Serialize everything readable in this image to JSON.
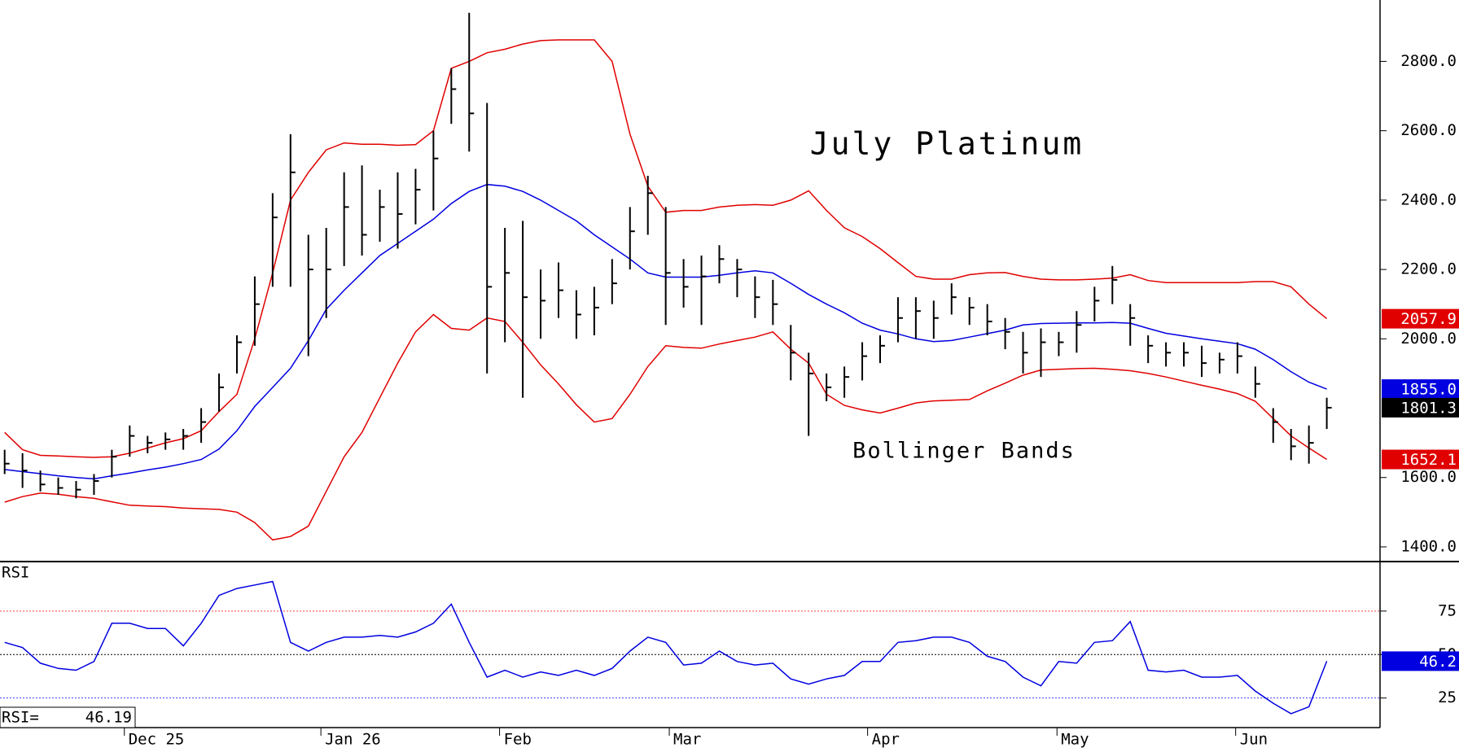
{
  "chart_data": [
    {
      "type": "ohlc",
      "title": "July Platinum",
      "annotation": "Bollinger Bands",
      "annotation_color": "#e00000",
      "xlim": [
        -0.26,
        76.98
      ],
      "ylim": [
        1360,
        2977
      ],
      "yticks": [
        {
          "value": 1400,
          "label": "1400.0"
        },
        {
          "value": 1600,
          "label": "1600.0"
        },
        {
          "value": 2000,
          "label": "2000.0"
        },
        {
          "value": 2200,
          "label": "2200.0"
        },
        {
          "value": 2400,
          "label": "2400.0"
        },
        {
          "value": 2600,
          "label": "2600.0"
        },
        {
          "value": 2800,
          "label": "2800.0"
        }
      ],
      "price": {
        "color": "#000000",
        "close_tag": "1801.3",
        "high": [
          1680,
          1670,
          1620,
          1600,
          1590,
          1610,
          1680,
          1750,
          1720,
          1730,
          1740,
          1800,
          1900,
          2010,
          2180,
          2420,
          2590,
          2300,
          2320,
          2480,
          2500,
          2430,
          2480,
          2490,
          2600,
          2780,
          2940,
          2680,
          2320,
          2340,
          2200,
          2220,
          2140,
          2150,
          2230,
          2380,
          2470,
          2380,
          2230,
          2240,
          2270,
          2230,
          2180,
          2170,
          2040,
          1960,
          1900,
          1920,
          1990,
          2010,
          2120,
          2120,
          2110,
          2160,
          2120,
          2100,
          2060,
          2020,
          2030,
          2020,
          2080,
          2150,
          2210,
          2100,
          2010,
          1990,
          1990,
          1980,
          1960,
          1990,
          1920,
          1800,
          1740,
          1750,
          1830
        ],
        "low": [
          1610,
          1570,
          1560,
          1550,
          1540,
          1550,
          1600,
          1660,
          1670,
          1680,
          1680,
          1700,
          1790,
          1900,
          1980,
          2150,
          2150,
          1950,
          2060,
          2210,
          2240,
          2280,
          2260,
          2330,
          2370,
          2620,
          2540,
          1900,
          1990,
          1830,
          2000,
          2060,
          2000,
          2010,
          2100,
          2200,
          2300,
          2040,
          2090,
          2040,
          2160,
          2120,
          2060,
          2040,
          1880,
          1720,
          1820,
          1830,
          1880,
          1930,
          1990,
          2000,
          2000,
          2070,
          2040,
          2010,
          1970,
          1900,
          1890,
          1950,
          1960,
          2050,
          2100,
          1980,
          1930,
          1920,
          1920,
          1890,
          1900,
          1900,
          1830,
          1700,
          1650,
          1640,
          1740
        ],
        "close": [
          1640,
          1620,
          1580,
          1570,
          1565,
          1590,
          1660,
          1720,
          1700,
          1710,
          1720,
          1760,
          1860,
          1990,
          2100,
          2350,
          2480,
          2200,
          2200,
          2380,
          2300,
          2380,
          2360,
          2430,
          2520,
          2720,
          2650,
          2150,
          2190,
          2120,
          2110,
          2140,
          2070,
          2090,
          2160,
          2310,
          2420,
          2190,
          2150,
          2180,
          2230,
          2200,
          2120,
          2100,
          1960,
          1900,
          1860,
          1890,
          1950,
          1980,
          2060,
          2080,
          2060,
          2120,
          2090,
          2050,
          2020,
          1960,
          1990,
          1990,
          2040,
          2110,
          2170,
          2060,
          1980,
          1960,
          1960,
          1930,
          1940,
          1950,
          1870,
          1760,
          1690,
          1700,
          1801.3
        ]
      },
      "series": [
        {
          "color": "#e00000",
          "tag": "2057.9",
          "values": [
            1730,
            1680,
            1664,
            1662,
            1660,
            1658,
            1660,
            1670,
            1685,
            1700,
            1712,
            1735,
            1790,
            1840,
            2000,
            2190,
            2400,
            2480,
            2545,
            2565,
            2561,
            2561,
            2558,
            2560,
            2600,
            2780,
            2800,
            2825,
            2835,
            2850,
            2860,
            2862,
            2862,
            2862,
            2800,
            2590,
            2440,
            2365,
            2370,
            2370,
            2380,
            2385,
            2387,
            2385,
            2400,
            2427,
            2370,
            2320,
            2295,
            2260,
            2220,
            2180,
            2172,
            2172,
            2185,
            2190,
            2191,
            2180,
            2172,
            2170,
            2170,
            2172,
            2175,
            2185,
            2168,
            2162,
            2162,
            2162,
            2162,
            2162,
            2165,
            2165,
            2150,
            2100,
            2057.9
          ]
        },
        {
          "color": "#0000e0",
          "tag": "1855.0",
          "values": [
            1623,
            1617,
            1611,
            1605,
            1600,
            1596,
            1605,
            1613,
            1622,
            1630,
            1640,
            1652,
            1682,
            1735,
            1805,
            1860,
            1915,
            1995,
            2085,
            2140,
            2190,
            2240,
            2275,
            2310,
            2345,
            2390,
            2425,
            2445,
            2440,
            2425,
            2400,
            2370,
            2340,
            2300,
            2265,
            2230,
            2190,
            2178,
            2178,
            2178,
            2183,
            2190,
            2196,
            2190,
            2160,
            2128,
            2100,
            2075,
            2045,
            2025,
            2014,
            2000,
            1992,
            1995,
            2005,
            2015,
            2025,
            2040,
            2044,
            2045,
            2046,
            2046,
            2047,
            2045,
            2030,
            2016,
            2008,
            2000,
            1993,
            1986,
            1970,
            1940,
            1905,
            1875,
            1855
          ]
        },
        {
          "color": "#e00000",
          "tag": "1652.1",
          "values": [
            1529,
            1545,
            1555,
            1552,
            1545,
            1540,
            1530,
            1520,
            1518,
            1516,
            1512,
            1510,
            1508,
            1500,
            1470,
            1420,
            1430,
            1460,
            1560,
            1660,
            1730,
            1830,
            1930,
            2020,
            2070,
            2030,
            2025,
            2060,
            2050,
            1990,
            1925,
            1870,
            1810,
            1760,
            1770,
            1840,
            1920,
            1980,
            1975,
            1973,
            1985,
            1995,
            2005,
            2020,
            1970,
            1930,
            1840,
            1808,
            1795,
            1786,
            1800,
            1815,
            1821,
            1823,
            1825,
            1850,
            1872,
            1895,
            1910,
            1912,
            1914,
            1915,
            1912,
            1908,
            1900,
            1890,
            1878,
            1866,
            1855,
            1842,
            1820,
            1770,
            1720,
            1685,
            1652.1
          ]
        }
      ]
    },
    {
      "type": "line",
      "title": "RSI",
      "readout_label": "RSI=",
      "readout": "46.19",
      "xlim": [
        -0.26,
        76.98
      ],
      "xticks": [
        {
          "value": 6.7,
          "label": "Dec 25"
        },
        {
          "value": 17.7,
          "label": "Jan 26"
        },
        {
          "value": 27.7,
          "label": "Feb"
        },
        {
          "value": 37.2,
          "label": "Mar"
        },
        {
          "value": 48.3,
          "label": "Apr"
        },
        {
          "value": 58.9,
          "label": "May"
        },
        {
          "value": 68.9,
          "label": "Jun"
        }
      ],
      "ylim": [
        8,
        103
      ],
      "yticks": [
        25,
        50,
        75
      ],
      "grid_colors": [
        "#4040ff",
        "#000000",
        "#ff4040"
      ],
      "series": [
        {
          "color": "#0000e0",
          "tag": "46.2",
          "values": [
            57,
            54,
            45,
            42,
            41,
            46,
            68,
            68,
            65,
            65,
            55,
            68,
            84,
            88,
            90,
            92,
            57,
            52,
            57,
            60,
            60,
            61,
            60,
            63,
            68,
            79,
            57,
            37,
            41,
            37,
            40,
            38,
            41,
            38,
            42,
            52,
            60,
            57,
            44,
            45,
            52,
            46,
            44,
            45,
            36,
            33,
            36,
            38,
            46,
            46,
            57,
            58,
            60,
            60,
            57,
            49,
            46,
            37,
            32,
            46,
            45,
            57,
            58,
            69,
            41,
            40,
            41,
            37,
            37,
            38,
            29,
            22,
            16,
            20,
            46.19
          ]
        }
      ]
    }
  ]
}
